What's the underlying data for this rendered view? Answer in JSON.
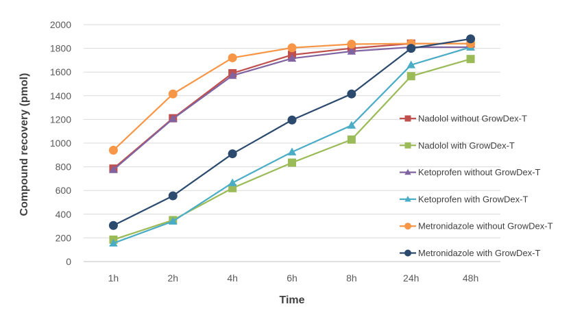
{
  "chart_data": {
    "type": "line",
    "xlabel": "Time",
    "ylabel": "Compound recovery (pmol)",
    "categories": [
      "1h",
      "2h",
      "4h",
      "6h",
      "8h",
      "24h",
      "48h"
    ],
    "ylim": [
      0,
      2000
    ],
    "yticks": [
      0,
      200,
      400,
      600,
      800,
      1000,
      1200,
      1400,
      1600,
      1800,
      2000
    ],
    "grid": "horizontal",
    "legend_position": "right",
    "series": [
      {
        "name": "Nadolol without GrowDex-T",
        "marker": "square",
        "color": "#C0504D",
        "values": [
          785,
          1210,
          1590,
          1745,
          1800,
          1840,
          1840
        ]
      },
      {
        "name": "Nadolol with GrowDex-T",
        "marker": "square",
        "color": "#9BBB59",
        "values": [
          185,
          350,
          620,
          835,
          1030,
          1565,
          1710
        ]
      },
      {
        "name": "Ketoprofen without GrowDex-T",
        "marker": "triangle",
        "color": "#8064A2",
        "values": [
          775,
          1205,
          1570,
          1715,
          1775,
          1810,
          1810
        ]
      },
      {
        "name": "Ketoprofen with GrowDex-T",
        "marker": "triangle",
        "color": "#4BACC6",
        "values": [
          155,
          340,
          665,
          925,
          1150,
          1660,
          1810
        ]
      },
      {
        "name": "Metronidazole without GrowDex-T",
        "marker": "circle",
        "color": "#F79646",
        "values": [
          940,
          1415,
          1720,
          1805,
          1835,
          1840,
          1840
        ]
      },
      {
        "name": "Metronidazole with GrowDex-T",
        "marker": "circle",
        "color": "#2C4A6E",
        "values": [
          305,
          555,
          910,
          1195,
          1415,
          1800,
          1880
        ]
      }
    ]
  }
}
